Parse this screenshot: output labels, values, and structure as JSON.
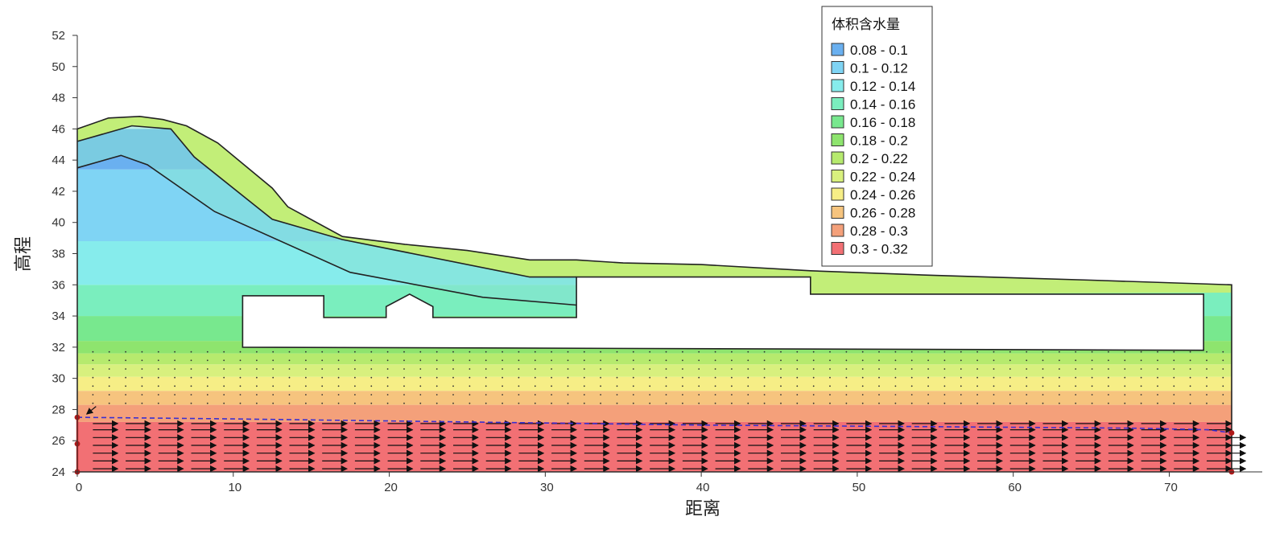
{
  "chart_data": {
    "type": "heatmap",
    "xlabel": "距离",
    "ylabel": "高程",
    "xlim": [
      0,
      74
    ],
    "ylim": [
      24,
      52
    ],
    "x_ticks": [
      0,
      10,
      20,
      30,
      40,
      50,
      60,
      70
    ],
    "y_ticks": [
      24,
      26,
      28,
      30,
      32,
      34,
      36,
      38,
      40,
      42,
      44,
      46,
      48,
      50,
      52
    ],
    "legend": {
      "title": "体积含水量",
      "placement": "top-right",
      "entries": [
        {
          "label": "0.08 - 0.1",
          "color": "#6ab0f0"
        },
        {
          "label": "0.1 - 0.12",
          "color": "#7fd4f4"
        },
        {
          "label": "0.12 - 0.14",
          "color": "#86ecec"
        },
        {
          "label": "0.14 - 0.16",
          "color": "#7aeebe"
        },
        {
          "label": "0.16 - 0.18",
          "color": "#78e88e"
        },
        {
          "label": "0.18 - 0.2",
          "color": "#8ee46e"
        },
        {
          "label": "0.2 - 0.22",
          "color": "#b6ea6e"
        },
        {
          "label": "0.22 - 0.24",
          "color": "#d8f07e"
        },
        {
          "label": "0.24 - 0.26",
          "color": "#f6ee86"
        },
        {
          "label": "0.26 - 0.28",
          "color": "#f6c47e"
        },
        {
          "label": "0.28 - 0.3",
          "color": "#f4a07a"
        },
        {
          "label": "0.3 - 0.32",
          "color": "#f27074"
        }
      ]
    },
    "moisture_bands": [
      {
        "ymin": 24,
        "ymax": 27.2,
        "color": "#f27074"
      },
      {
        "ymin": 27.2,
        "ymax": 28.3,
        "color": "#f4a07a"
      },
      {
        "ymin": 28.3,
        "ymax": 29.2,
        "color": "#f6c47e"
      },
      {
        "ymin": 29.2,
        "ymax": 30.1,
        "color": "#f6ee86"
      },
      {
        "ymin": 30.1,
        "ymax": 30.9,
        "color": "#d8f07e"
      },
      {
        "ymin": 30.9,
        "ymax": 31.6,
        "color": "#b6ea6e"
      },
      {
        "ymin": 31.6,
        "ymax": 32.4,
        "color": "#8ee46e"
      },
      {
        "ymin": 32.4,
        "ymax": 34.0,
        "color": "#78e88e"
      },
      {
        "ymin": 34.0,
        "ymax": 36.0,
        "color": "#7aeebe"
      },
      {
        "ymin": 36.0,
        "ymax": 38.8,
        "color": "#86ecec"
      },
      {
        "ymin": 38.8,
        "ymax": 43.4,
        "color": "#7fd4f4"
      },
      {
        "ymin": 43.4,
        "ymax": 46.0,
        "color": "#6ab0f0"
      }
    ],
    "surface_profile": [
      [
        0,
        46
      ],
      [
        2,
        46.7
      ],
      [
        4,
        46.8
      ],
      [
        5.5,
        46.6
      ],
      [
        7,
        46.2
      ],
      [
        9,
        45.1
      ],
      [
        12.5,
        42.2
      ],
      [
        13.5,
        41.0
      ],
      [
        17,
        39.1
      ],
      [
        21,
        38.6
      ],
      [
        25,
        38.2
      ],
      [
        29,
        37.6
      ],
      [
        32,
        37.6
      ],
      [
        35,
        37.4
      ],
      [
        40,
        37.3
      ],
      [
        47,
        36.9
      ],
      [
        55,
        36.6
      ],
      [
        65,
        36.3
      ],
      [
        74,
        36.0
      ],
      [
        74,
        24
      ],
      [
        0,
        24
      ]
    ],
    "upper_surface_band": [
      [
        0,
        46
      ],
      [
        2,
        46.7
      ],
      [
        4,
        46.8
      ],
      [
        5.5,
        46.6
      ],
      [
        7,
        46.2
      ],
      [
        9,
        45.1
      ],
      [
        12.5,
        42.2
      ],
      [
        13.5,
        41.0
      ],
      [
        17,
        39.1
      ],
      [
        21,
        38.6
      ],
      [
        25,
        38.2
      ],
      [
        29,
        37.6
      ],
      [
        32,
        37.6
      ],
      [
        35,
        37.4
      ],
      [
        40,
        37.3
      ],
      [
        47,
        36.9
      ],
      [
        55,
        36.6
      ],
      [
        65,
        36.3
      ],
      [
        74,
        36.0
      ],
      [
        74,
        35.5
      ],
      [
        47,
        35.4
      ],
      [
        47,
        36.5
      ],
      [
        32,
        36.5
      ],
      [
        29,
        36.5
      ],
      [
        17,
        38.9
      ],
      [
        12.5,
        40.2
      ],
      [
        7.5,
        44.2
      ],
      [
        6,
        46.0
      ],
      [
        3.5,
        46.2
      ],
      [
        0,
        45.2
      ]
    ],
    "mid_surface_band": [
      [
        0,
        45.2
      ],
      [
        3.5,
        46.2
      ],
      [
        6,
        46.0
      ],
      [
        7.5,
        44.2
      ],
      [
        12.5,
        40.2
      ],
      [
        17,
        38.9
      ],
      [
        29,
        36.5
      ],
      [
        32,
        36.5
      ],
      [
        32,
        34.7
      ],
      [
        26,
        35.2
      ],
      [
        17.5,
        36.8
      ],
      [
        8.8,
        40.7
      ],
      [
        4.5,
        43.7
      ],
      [
        2.8,
        44.3
      ],
      [
        0,
        43.5
      ]
    ],
    "layer_lines": [
      [
        [
          0,
          45.2
        ],
        [
          3.5,
          46.2
        ],
        [
          6,
          46.0
        ],
        [
          7.5,
          44.2
        ],
        [
          12.5,
          40.2
        ],
        [
          17,
          38.9
        ],
        [
          29,
          36.5
        ],
        [
          32,
          36.5
        ]
      ],
      [
        [
          0,
          43.5
        ],
        [
          2.8,
          44.3
        ],
        [
          4.5,
          43.7
        ],
        [
          8.8,
          40.7
        ],
        [
          17.5,
          36.8
        ],
        [
          26,
          35.2
        ],
        [
          32,
          34.7
        ]
      ]
    ],
    "structure_region": [
      [
        10.6,
        35.3
      ],
      [
        15.8,
        35.3
      ],
      [
        15.8,
        33.9
      ],
      [
        19.8,
        33.9
      ],
      [
        19.8,
        34.6
      ],
      [
        21.3,
        35.4
      ],
      [
        22.8,
        34.6
      ],
      [
        22.8,
        33.9
      ],
      [
        32,
        33.9
      ],
      [
        32,
        36.5
      ],
      [
        47,
        36.5
      ],
      [
        47,
        35.4
      ],
      [
        72.2,
        35.4
      ],
      [
        72.2,
        31.8
      ],
      [
        10.6,
        32.0
      ]
    ],
    "phreatic_line": [
      [
        0,
        27.5
      ],
      [
        10,
        27.4
      ],
      [
        25,
        27.2
      ],
      [
        40,
        27.0
      ],
      [
        55,
        26.9
      ],
      [
        68,
        26.8
      ],
      [
        72.5,
        26.7
      ],
      [
        74,
        26.5
      ]
    ],
    "boundary_nodes": [
      [
        0,
        27.5
      ],
      [
        0,
        25.8
      ],
      [
        0,
        24.0
      ],
      [
        74,
        26.5
      ],
      [
        74,
        24.0
      ]
    ]
  }
}
